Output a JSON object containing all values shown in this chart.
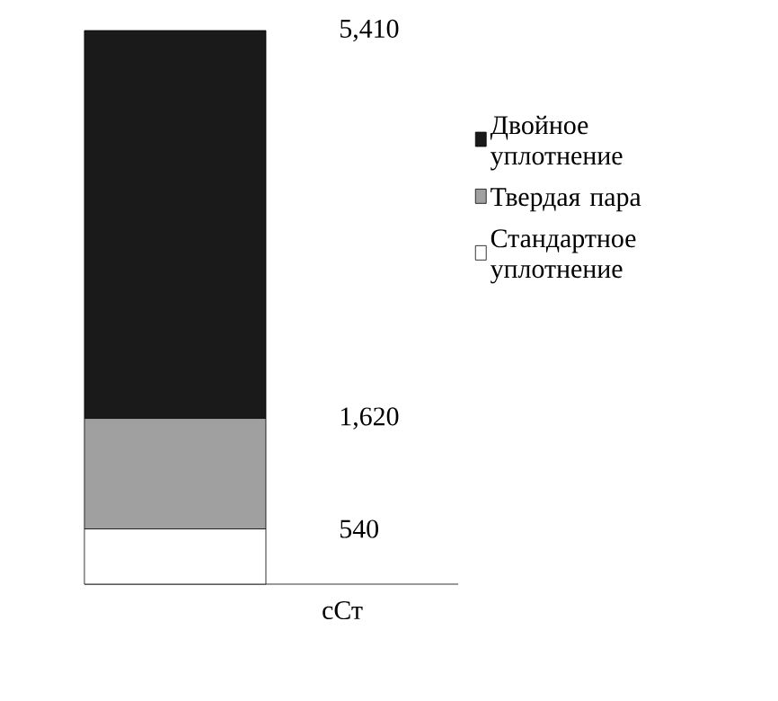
{
  "chart_data": {
    "type": "bar",
    "stacked": true,
    "categories": [
      null
    ],
    "legend": "right",
    "series": [
      {
        "name": "Стандартное уплотнение",
        "color": "#ffffff",
        "values": [
          540
        ]
      },
      {
        "name": "Твердая пара",
        "color": "#a0a0a0",
        "values": [
          1080
        ]
      },
      {
        "name": "Двойное уплотнение",
        "color": "#1a1a1a",
        "values": [
          3790
        ]
      }
    ],
    "annotations": [
      "сСт"
    ],
    "ylim": [
      0,
      5410
    ],
    "yticks": [
      540,
      {
        "value": 1620,
        "label": "1,620"
      },
      {
        "value": 5410,
        "label": "5,410"
      }
    ],
    "tick_labels": "y"
  }
}
